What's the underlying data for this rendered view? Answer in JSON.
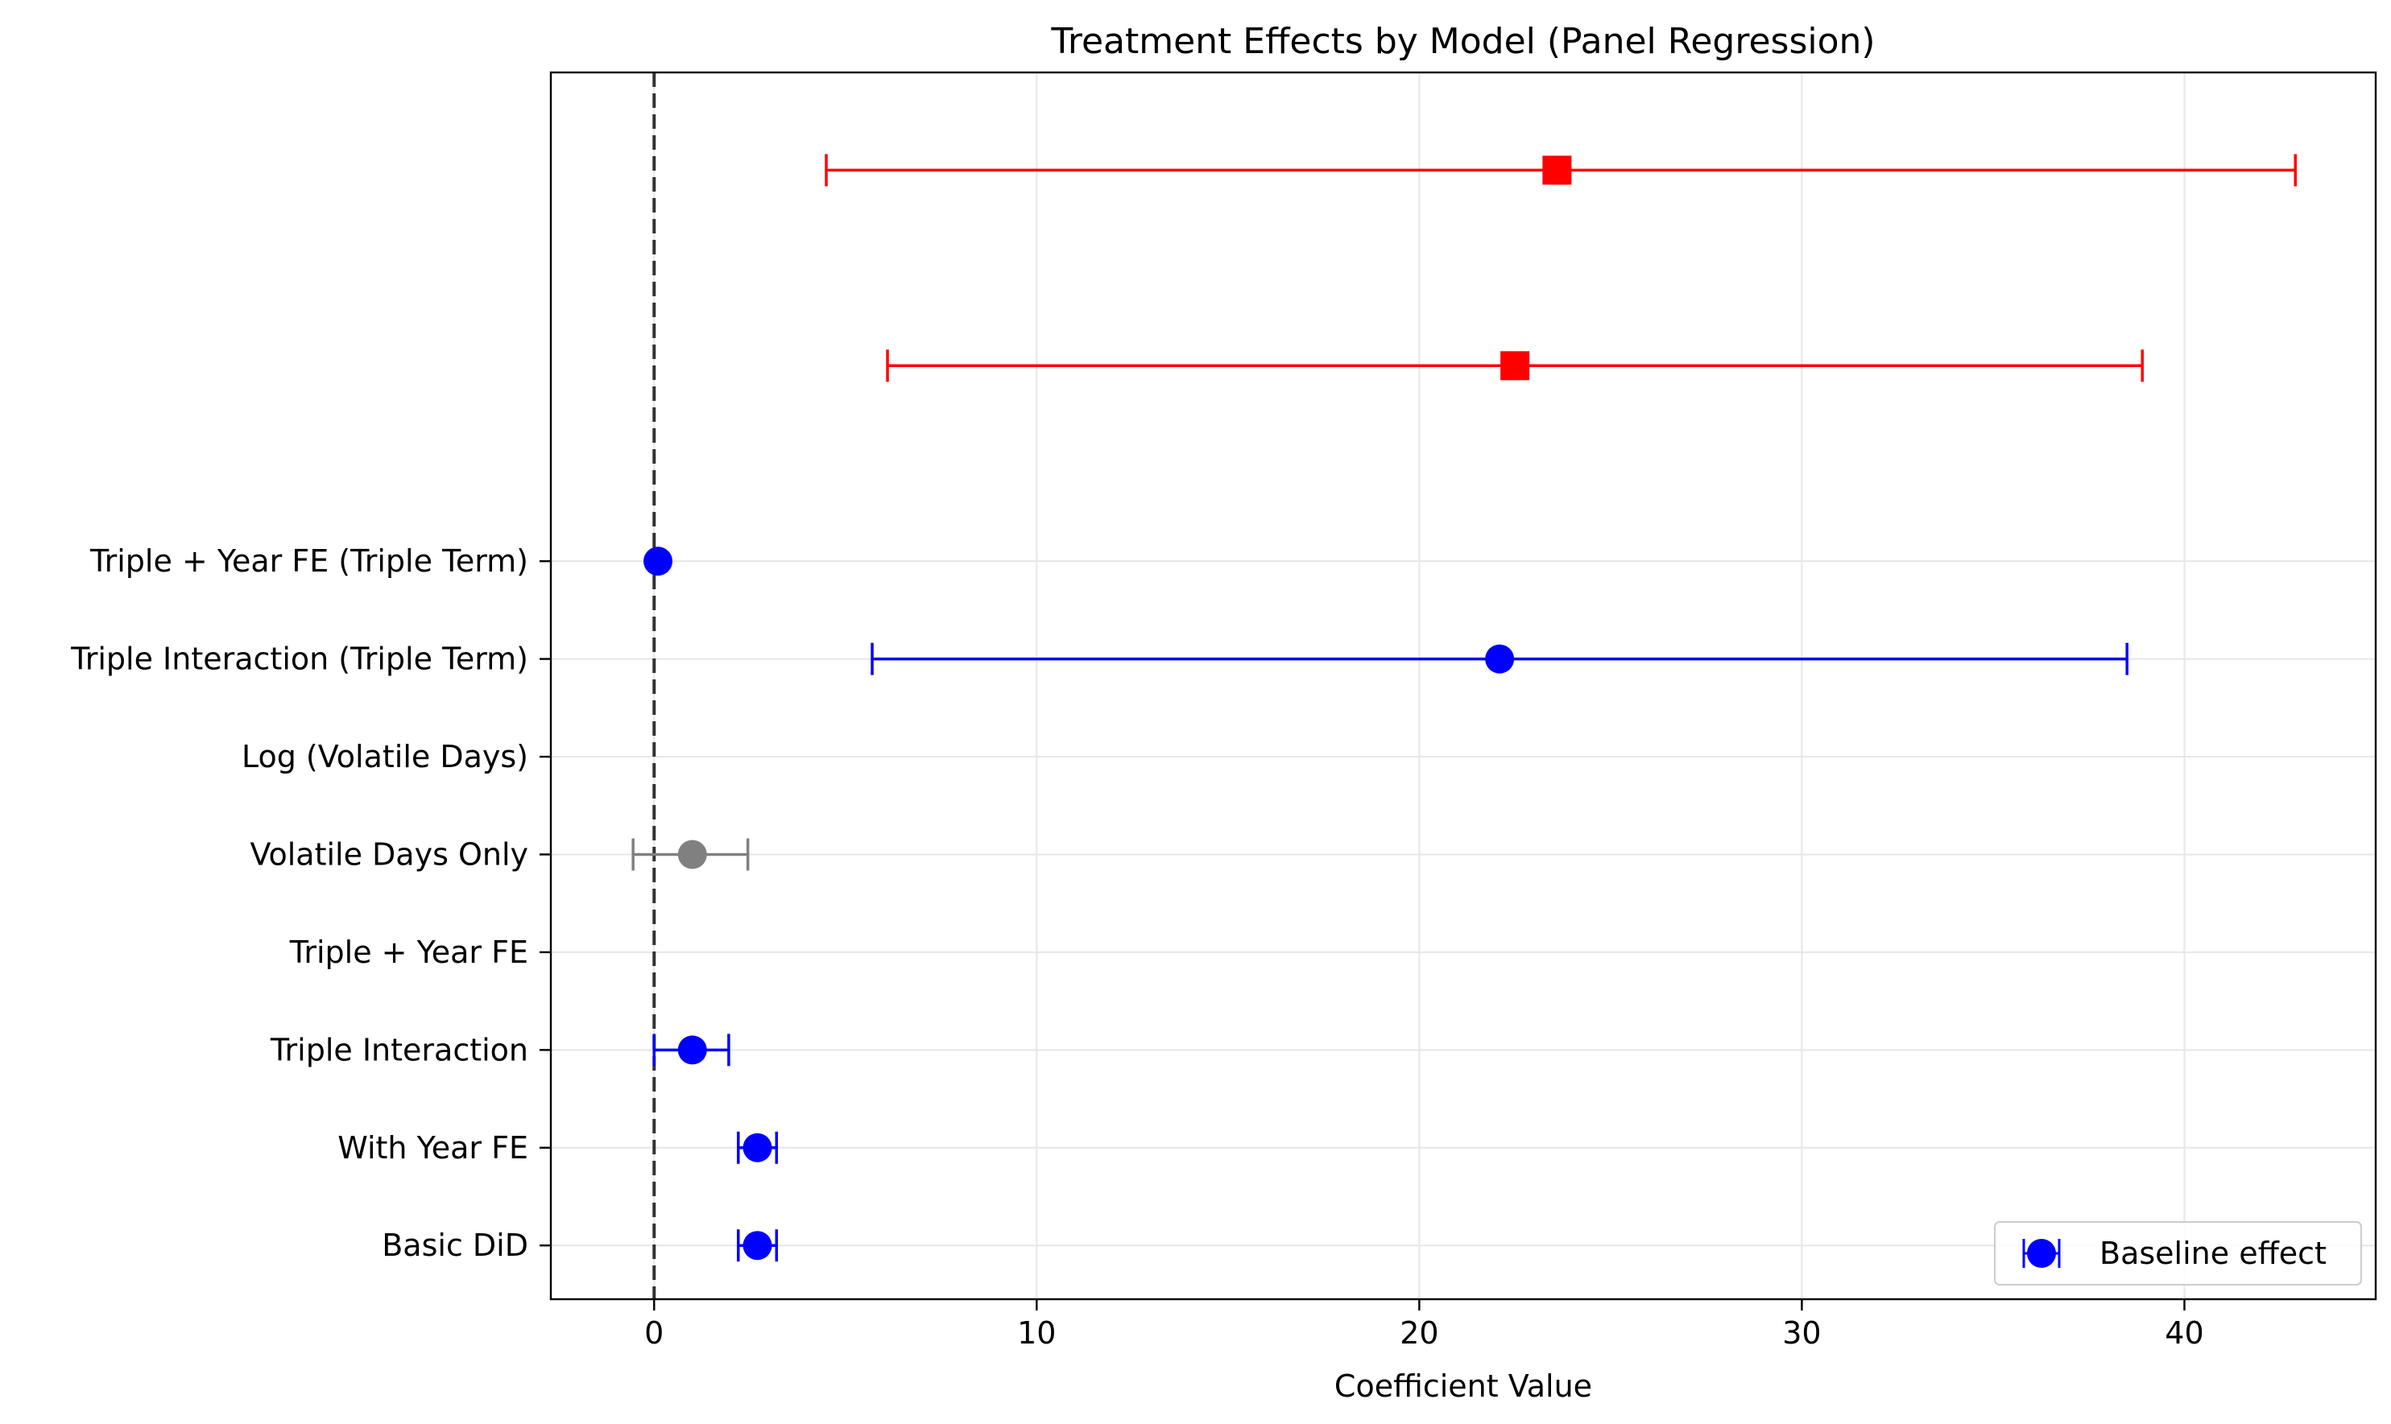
{
  "chart_data": {
    "type": "scatter",
    "title": "Treatment Effects by Model (Panel Regression)",
    "xlabel": "Coefficient Value",
    "ylabel": "",
    "xlim": [
      -2.7,
      45
    ],
    "xticks": [
      0,
      10,
      20,
      30,
      40
    ],
    "grid": true,
    "reference_line_x": 0,
    "categories": [
      "Basic DiD",
      "With Year FE",
      "Triple Interaction",
      "Triple + Year FE",
      "Volatile Days Only",
      "Log (Volatile Days)",
      "Triple Interaction (Triple Term)",
      "Triple + Year FE (Triple Term)"
    ],
    "points": [
      {
        "row": 0,
        "estimate": 2.7,
        "ci_low": 2.2,
        "ci_high": 3.2,
        "color": "#0000ff",
        "marker": "circle"
      },
      {
        "row": 1,
        "estimate": 2.7,
        "ci_low": 2.2,
        "ci_high": 3.2,
        "color": "#0000ff",
        "marker": "circle"
      },
      {
        "row": 2,
        "estimate": 1.0,
        "ci_low": 0.0,
        "ci_high": 1.95,
        "color": "#0000ff",
        "marker": "circle"
      },
      {
        "row": 4,
        "estimate": 1.0,
        "ci_low": -0.55,
        "ci_high": 2.45,
        "color": "#808080",
        "marker": "circle"
      },
      {
        "row": 6,
        "estimate": 22.1,
        "ci_low": 5.7,
        "ci_high": 38.5,
        "color": "#0000ff",
        "marker": "circle"
      },
      {
        "row": 7,
        "estimate": 0.1,
        "ci_low": 0.1,
        "ci_high": 0.1,
        "color": "#0000ff",
        "marker": "circle"
      },
      {
        "row": 9,
        "estimate": 22.5,
        "ci_low": 6.1,
        "ci_high": 38.9,
        "color": "#ff0000",
        "marker": "square"
      },
      {
        "row": 11,
        "estimate": 23.6,
        "ci_low": 4.5,
        "ci_high": 42.9,
        "color": "#ff0000",
        "marker": "square"
      }
    ],
    "ylim": [
      -0.55,
      12.0
    ],
    "legend": {
      "position": "lower-right",
      "entries": [
        {
          "label": "Baseline effect",
          "color": "#0000ff",
          "marker": "circle"
        }
      ]
    }
  }
}
